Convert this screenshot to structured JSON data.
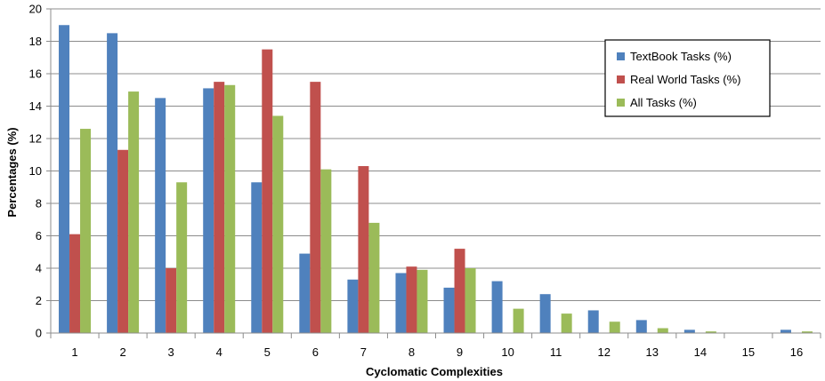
{
  "chart_data": {
    "type": "bar",
    "title": "",
    "xlabel": "Cyclomatic Complexities",
    "ylabel": "Percentages (%)",
    "ylim": [
      0,
      20
    ],
    "yticks": [
      0,
      2,
      4,
      6,
      8,
      10,
      12,
      14,
      16,
      18,
      20
    ],
    "grid": true,
    "legend_position": "top-right",
    "categories": [
      "1",
      "2",
      "3",
      "4",
      "5",
      "6",
      "7",
      "8",
      "9",
      "10",
      "11",
      "12",
      "13",
      "14",
      "15",
      "16"
    ],
    "series": [
      {
        "name": "TextBook Tasks (%)",
        "color": "#4F81BD",
        "values": [
          19.0,
          18.5,
          14.5,
          15.1,
          9.3,
          4.9,
          3.3,
          3.7,
          2.8,
          3.2,
          2.4,
          1.4,
          0.8,
          0.2,
          0.0,
          0.2
        ]
      },
      {
        "name": "Real World Tasks (%)",
        "color": "#C0504D",
        "values": [
          6.1,
          11.3,
          4.0,
          15.5,
          17.5,
          15.5,
          10.3,
          4.1,
          5.2,
          0.0,
          0.0,
          0.0,
          0.0,
          0.0,
          0.0,
          0.0
        ]
      },
      {
        "name": "All Tasks (%)",
        "color": "#9BBB59",
        "values": [
          12.6,
          14.9,
          9.3,
          15.3,
          13.4,
          10.1,
          6.8,
          3.9,
          4.0,
          1.5,
          1.2,
          0.7,
          0.3,
          0.1,
          0.0,
          0.1
        ]
      }
    ]
  }
}
